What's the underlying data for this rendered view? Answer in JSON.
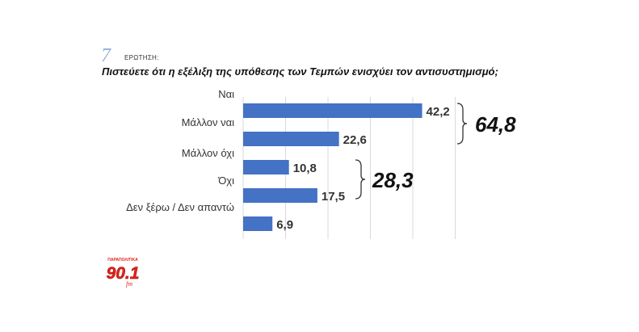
{
  "question": {
    "number": "7",
    "label": "ΕΡΩΤΗΣΗ:",
    "text": "Πιστεύετε ότι η εξέλιξη της υπόθεσης των Τεμπών ενισχύει τον αντισυστημισμό;"
  },
  "chart_data": {
    "type": "bar",
    "orientation": "horizontal",
    "categories": [
      "Ναι",
      "Μάλλον ναι",
      "Μάλλον όχι",
      "Όχι",
      "Δεν ξέρω / Δεν απαντώ"
    ],
    "values": [
      42.2,
      22.6,
      10.8,
      17.5,
      6.9
    ],
    "value_labels": [
      "42,2",
      "22,6",
      "10,8",
      "17,5",
      "6,9"
    ],
    "xlim": [
      0,
      50
    ],
    "grid": true,
    "bar_color": "#4472c4",
    "groups": [
      {
        "label": "64,8",
        "members": [
          0,
          1
        ]
      },
      {
        "label": "28,3",
        "members": [
          2,
          3
        ]
      }
    ]
  },
  "logo": {
    "top_text": "ΠΑΡΑΠΟΛΙΤΙΚΑ",
    "number": "90.1",
    "suffix": "fm",
    "color": "#e2231a"
  }
}
